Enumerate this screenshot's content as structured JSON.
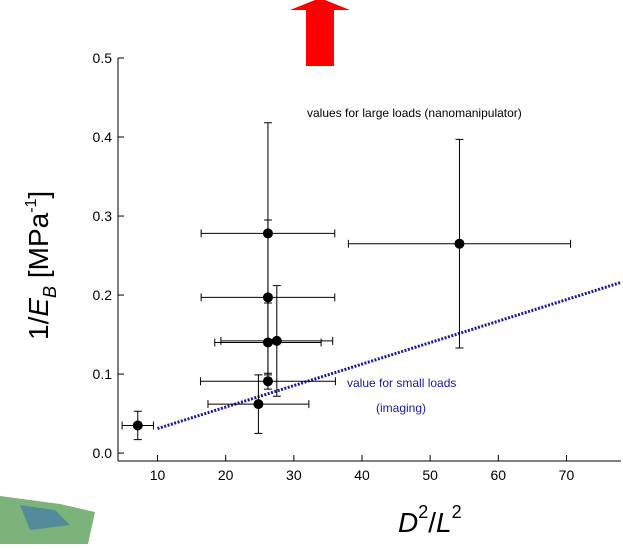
{
  "chart_data": {
    "type": "scatter",
    "x_label": {
      "var1": "D",
      "sup1": "2",
      "slash": "/",
      "var2": "L",
      "sup2": "2"
    },
    "y_label": {
      "prefix": "1/",
      "var": "E",
      "sub": "B",
      "unit": " [MPa",
      "sup": "-1",
      "close": "]"
    },
    "annotations": [
      "values for large loads (nanomanipulator)",
      "value for small loads",
      "(imaging)"
    ],
    "xlim": [
      4.2,
      78
    ],
    "ylim": [
      -0.01,
      0.5
    ],
    "xticks": [
      10,
      20,
      30,
      40,
      50,
      60,
      70
    ],
    "yticks": [
      {
        "value": 0,
        "label": "0.0"
      },
      0.1,
      0.2,
      0.3,
      0.4,
      0.5
    ],
    "series": [
      {
        "color": "#000000",
        "x": [
          7.1,
          24.8,
          26.2,
          26.2,
          27.5,
          26.2,
          26.2,
          54.3
        ],
        "values": [
          0.035,
          0.062,
          0.091,
          0.14,
          0.142,
          0.197,
          0.278,
          0.265
        ],
        "xerr": [
          2.3,
          7.4,
          9.9,
          7.8,
          8.2,
          9.8,
          9.8,
          16.3
        ],
        "yerr": [
          0.018,
          0.037,
          0.01,
          0.05,
          0.07,
          0.098,
          0.14,
          0.132
        ]
      }
    ],
    "fit": {
      "color": "#1a1aa0",
      "x": [
        10,
        78
      ],
      "values": [
        0.031,
        0.216
      ]
    }
  }
}
